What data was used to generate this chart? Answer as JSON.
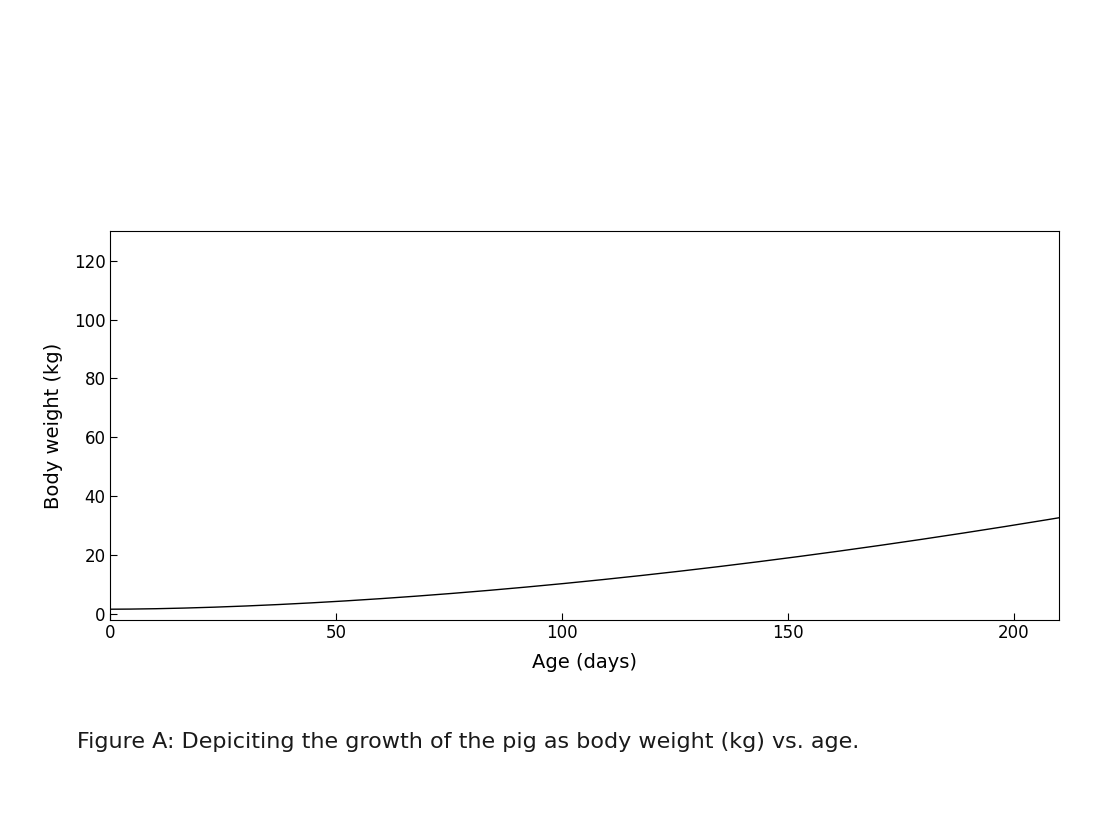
{
  "xlabel": "Age (days)",
  "ylabel": "Body weight (kg)",
  "caption": "Figure A: Depiciting the growth of the pig as body weight (kg) vs. age.",
  "xlim": [
    0,
    210
  ],
  "ylim": [
    -2,
    130
  ],
  "xticks": [
    0,
    50,
    100,
    150,
    200
  ],
  "yticks": [
    0,
    20,
    40,
    60,
    80,
    100,
    120
  ],
  "line_color": "#000000",
  "line_width": 1.0,
  "ylabel_color": "#000000",
  "xlabel_color": "#000000",
  "caption_color": "#1a1a1a",
  "background_color": "#ffffff",
  "xlabel_fontsize": 14,
  "ylabel_fontsize": 14,
  "tick_fontsize": 12,
  "caption_fontsize": 16,
  "power_a": 1.5,
  "power_b": 0.00315,
  "power_c": 1.72,
  "x_start": 0,
  "x_end": 210,
  "n_points": 1000
}
